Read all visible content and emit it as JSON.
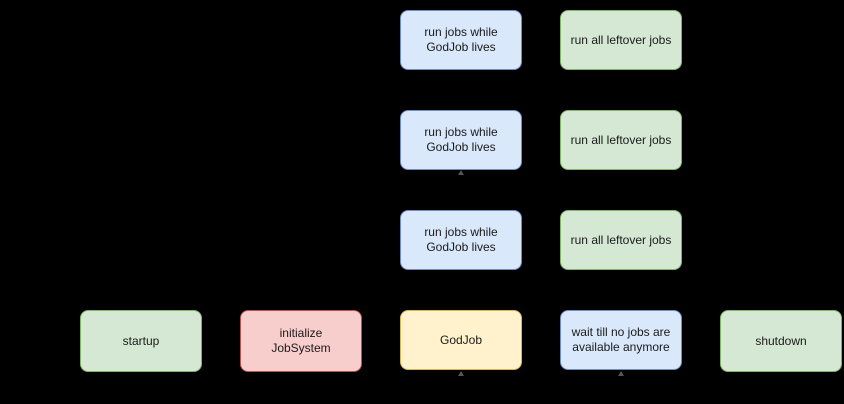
{
  "diagram": {
    "nodes": {
      "startup": "startup",
      "init": "initialize\nJobSystem",
      "godjob": "GodJob",
      "wait": "wait till no jobs are\navailable anymore",
      "shutdown": "shutdown",
      "run1": "run jobs while\nGodJob lives",
      "run2": "run jobs while\nGodJob lives",
      "run3": "run jobs while\nGodJob lives",
      "leftover1": "run all leftover jobs",
      "leftover2": "run all leftover jobs",
      "leftover3": "run all leftover jobs"
    },
    "colors": {
      "background": "#000000",
      "green_fill": "#d5e8d4",
      "green_stroke": "#82b366",
      "blue_fill": "#dae8fc",
      "blue_stroke": "#6c8ebf",
      "red_fill": "#f8cecc",
      "red_stroke": "#b85450",
      "yellow_fill": "#fff2cc",
      "yellow_stroke": "#d6b656"
    }
  }
}
